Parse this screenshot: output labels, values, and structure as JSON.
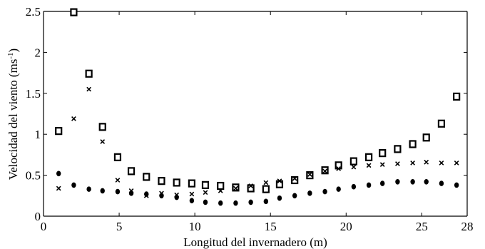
{
  "chart_data": {
    "type": "scatter",
    "title": "",
    "xlabel": "Longitud del invernadero (m)",
    "ylabel": "Velocidad del viento (ms",
    "ylabel_superscript": "-1",
    "ylabel_suffix": ")",
    "xlim": [
      0,
      28
    ],
    "ylim": [
      0,
      2.5
    ],
    "xticks": [
      "0",
      "5",
      "10",
      "15",
      "20",
      "25",
      "28"
    ],
    "xtick_values": [
      0,
      5,
      10,
      15,
      20,
      25,
      28
    ],
    "yticks": [
      "0",
      "0.5",
      "1",
      "1.5",
      "2",
      "2.5"
    ],
    "ytick_values": [
      0,
      0.5,
      1,
      1.5,
      2,
      2.5
    ],
    "grid": false,
    "legend": "none",
    "color": "#000000",
    "series": [
      {
        "marker": "square",
        "x": [
          1.0,
          2.0,
          3.0,
          3.9,
          4.9,
          5.8,
          6.8,
          7.8,
          8.8,
          9.8,
          10.7,
          11.7,
          12.7,
          13.7,
          14.7,
          15.6,
          16.6,
          17.6,
          18.6,
          19.5,
          20.5,
          21.5,
          22.4,
          23.4,
          24.4,
          25.3,
          26.3,
          27.3
        ],
        "y": [
          1.04,
          2.49,
          1.74,
          1.09,
          0.72,
          0.55,
          0.48,
          0.43,
          0.41,
          0.4,
          0.38,
          0.37,
          0.35,
          0.34,
          0.33,
          0.39,
          0.44,
          0.5,
          0.56,
          0.62,
          0.67,
          0.72,
          0.77,
          0.82,
          0.88,
          0.96,
          1.13,
          1.46
        ]
      },
      {
        "marker": "cross",
        "x": [
          1.0,
          2.0,
          3.0,
          3.9,
          4.9,
          5.8,
          6.8,
          7.8,
          8.8,
          9.8,
          10.7,
          11.7,
          12.7,
          13.7,
          14.7,
          15.6,
          16.6,
          17.6,
          18.6,
          19.5,
          20.5,
          21.5,
          22.4,
          23.4,
          24.4,
          25.3,
          26.3,
          27.3
        ],
        "y": [
          0.34,
          1.19,
          1.55,
          0.91,
          0.44,
          0.31,
          0.25,
          0.28,
          0.26,
          0.27,
          0.29,
          0.31,
          0.34,
          0.37,
          0.41,
          0.43,
          0.46,
          0.51,
          0.55,
          0.58,
          0.6,
          0.62,
          0.63,
          0.64,
          0.65,
          0.66,
          0.65,
          0.65
        ]
      },
      {
        "marker": "dot",
        "x": [
          1.0,
          2.0,
          3.0,
          3.9,
          4.9,
          5.8,
          6.8,
          7.8,
          8.8,
          9.8,
          10.7,
          11.7,
          12.7,
          13.7,
          14.7,
          15.6,
          16.6,
          17.6,
          18.6,
          19.5,
          20.5,
          21.5,
          22.4,
          23.4,
          24.4,
          25.3,
          26.3,
          27.3
        ],
        "y": [
          0.52,
          0.38,
          0.33,
          0.31,
          0.3,
          0.28,
          0.27,
          0.25,
          0.23,
          0.19,
          0.17,
          0.16,
          0.16,
          0.17,
          0.18,
          0.22,
          0.25,
          0.28,
          0.3,
          0.33,
          0.36,
          0.38,
          0.4,
          0.42,
          0.42,
          0.42,
          0.4,
          0.38
        ]
      }
    ]
  }
}
